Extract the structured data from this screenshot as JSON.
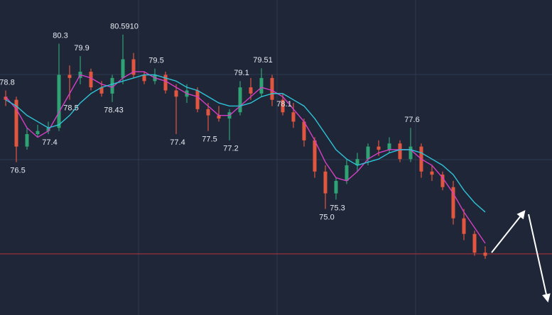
{
  "chart_data": {
    "type": "candlestick",
    "ylim": [
      71.6,
      81.7
    ],
    "up_color": "#2fa374",
    "down_color": "#e2553f",
    "candles": {
      "open": [
        78.6,
        78.5,
        77.0,
        77.4,
        77.5,
        77.6,
        79.3,
        79.2,
        79.4,
        78.9,
        78.7,
        79.2,
        79.8,
        79.3,
        79.1,
        79.3,
        78.8,
        78.6,
        78.8,
        78.2,
        78.0,
        77.9,
        78.1,
        78.9,
        78.7,
        79.2,
        78.5,
        78.1,
        77.8,
        77.2,
        76.2,
        75.5,
        75.9,
        76.4,
        76.6,
        77.0,
        76.9,
        77.1,
        76.6,
        77.0,
        76.2,
        76.1,
        75.7,
        74.7,
        74.2,
        73.6
      ],
      "high": [
        78.8,
        78.6,
        77.6,
        77.7,
        77.8,
        80.3,
        79.6,
        79.9,
        79.5,
        79.1,
        79.3,
        80.591,
        80.0,
        79.4,
        79.5,
        79.4,
        79.0,
        79.0,
        78.9,
        78.4,
        78.3,
        78.2,
        79.1,
        79.2,
        79.51,
        79.3,
        78.7,
        78.4,
        77.9,
        77.3,
        76.4,
        76.0,
        76.6,
        76.8,
        77.1,
        77.2,
        77.3,
        77.2,
        77.6,
        77.1,
        76.4,
        76.2,
        75.9,
        75.0,
        74.3,
        73.8
      ],
      "low": [
        78.3,
        76.5,
        76.9,
        77.3,
        77.4,
        77.5,
        78.5,
        79.0,
        78.8,
        78.6,
        78.43,
        79.0,
        79.2,
        79.0,
        79.0,
        78.7,
        77.4,
        78.4,
        78.1,
        77.5,
        77.8,
        77.2,
        78.0,
        78.5,
        78.6,
        78.3,
        78.0,
        77.6,
        77.0,
        76.0,
        75.0,
        75.3,
        75.8,
        76.2,
        76.4,
        76.7,
        76.8,
        76.5,
        76.5,
        76.0,
        75.9,
        75.6,
        74.5,
        74.0,
        73.5,
        73.4
      ],
      "close": [
        78.5,
        77.0,
        77.4,
        77.5,
        77.6,
        79.3,
        79.2,
        79.4,
        78.9,
        78.7,
        79.2,
        79.8,
        79.3,
        79.1,
        79.3,
        78.8,
        78.6,
        78.8,
        78.2,
        78.0,
        77.9,
        78.1,
        78.9,
        78.7,
        79.2,
        78.5,
        78.1,
        77.8,
        77.2,
        76.2,
        75.5,
        75.9,
        76.4,
        76.6,
        77.0,
        76.9,
        77.1,
        76.6,
        77.0,
        76.2,
        76.1,
        75.7,
        74.7,
        74.2,
        73.6,
        73.5
      ]
    },
    "series": [
      {
        "color": "#d63fc4",
        "values": [
          78.6,
          78.2,
          77.6,
          77.3,
          77.5,
          78.1,
          78.7,
          79.3,
          79.2,
          79.0,
          78.9,
          79.2,
          79.4,
          79.4,
          79.2,
          79.1,
          78.9,
          78.7,
          78.6,
          78.3,
          78.0,
          78.0,
          78.3,
          78.6,
          78.9,
          78.8,
          78.6,
          78.2,
          77.8,
          77.2,
          76.5,
          76.0,
          75.9,
          76.2,
          76.6,
          76.8,
          76.9,
          76.9,
          76.9,
          76.6,
          76.4,
          76.0,
          75.5,
          74.9,
          74.4,
          73.9
        ]
      },
      {
        "color": "#2fc3d6",
        "values": [
          78.5,
          78.3,
          78.0,
          77.8,
          77.6,
          77.7,
          78.0,
          78.4,
          78.7,
          78.9,
          79.0,
          79.1,
          79.2,
          79.3,
          79.3,
          79.2,
          79.1,
          78.9,
          78.8,
          78.6,
          78.4,
          78.3,
          78.3,
          78.4,
          78.6,
          78.7,
          78.7,
          78.5,
          78.3,
          77.9,
          77.4,
          76.9,
          76.6,
          76.4,
          76.5,
          76.6,
          76.8,
          76.9,
          76.9,
          76.8,
          76.6,
          76.4,
          76.1,
          75.6,
          75.2,
          74.9
        ]
      }
    ],
    "hline": {
      "value": 73.56,
      "color": "#b8323a"
    },
    "annotations": [
      {
        "label": "78.8",
        "candle": 0,
        "at": "high"
      },
      {
        "label": "76.5",
        "candle": 1,
        "at": "low"
      },
      {
        "label": "77.4",
        "candle": 4,
        "at": "low"
      },
      {
        "label": "80.3",
        "candle": 5,
        "at": "high"
      },
      {
        "label": "78.5",
        "candle": 6,
        "at": "low"
      },
      {
        "label": "79.9",
        "candle": 7,
        "at": "high"
      },
      {
        "label": "78.43",
        "candle": 10,
        "at": "low"
      },
      {
        "label": "80.5910",
        "candle": 11,
        "at": "high"
      },
      {
        "label": "79.5",
        "candle": 14,
        "at": "high"
      },
      {
        "label": "77.4",
        "candle": 16,
        "at": "low"
      },
      {
        "label": "77.5",
        "candle": 19,
        "at": "low"
      },
      {
        "label": "77.2",
        "candle": 21,
        "at": "low"
      },
      {
        "label": "79.1",
        "candle": 22,
        "at": "high"
      },
      {
        "label": "79.51",
        "candle": 24,
        "at": "high"
      },
      {
        "label": "78.1",
        "candle": 26,
        "at": "close"
      },
      {
        "label": "75.0",
        "candle": 30,
        "at": "low"
      },
      {
        "label": "75.3",
        "candle": 31,
        "at": "low"
      },
      {
        "label": "77.6",
        "candle": 38,
        "at": "high"
      }
    ]
  }
}
